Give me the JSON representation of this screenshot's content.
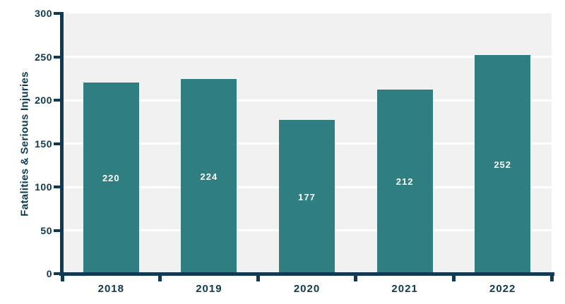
{
  "chart_data": {
    "type": "bar",
    "categories": [
      "2018",
      "2019",
      "2020",
      "2021",
      "2022"
    ],
    "values": [
      220,
      224,
      177,
      212,
      252
    ],
    "bar_labels": [
      "220",
      "224",
      "177",
      "212",
      "252"
    ],
    "ylabel": "Fatalities & Serious Injuries",
    "xlabel": "",
    "ylim": [
      0,
      300
    ],
    "yticks": [
      0,
      50,
      100,
      150,
      200,
      250,
      300
    ],
    "grid": true,
    "legend": false,
    "colors": {
      "bar": "#2f7f82",
      "axis": "#0e3a53",
      "tick_text": "#0e3a53",
      "bar_label_text": "#ffffff",
      "plot_background": "#f1f1f1",
      "gridline": "#ffffff",
      "page_background": "#ffffff"
    }
  }
}
